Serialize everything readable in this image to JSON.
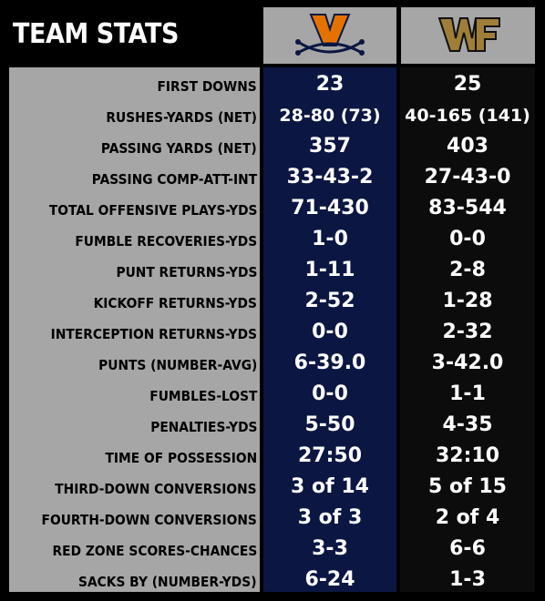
{
  "title": "TEAM STATS",
  "teams": [
    {
      "logo": "virginia-v-sabres-logo",
      "color": "#0b1742"
    },
    {
      "logo": "wake-forest-wf-logo",
      "color": "#0c0c0c"
    }
  ],
  "colors": {
    "label_bg": "#a6a6a6",
    "uva_orange": "#e57200",
    "wf_gold": "#9e7e38"
  },
  "stats": [
    {
      "label": "FIRST DOWNS",
      "uva": "23",
      "wf": "25"
    },
    {
      "label": "RUSHES-YARDS (NET)",
      "uva": "28-80 (73)",
      "wf": "40-165 (141)"
    },
    {
      "label": "PASSING YARDS (NET)",
      "uva": "357",
      "wf": "403"
    },
    {
      "label": "PASSING COMP-ATT-INT",
      "uva": "33-43-2",
      "wf": "27-43-0"
    },
    {
      "label": "TOTAL OFFENSIVE PLAYS-YDS",
      "uva": "71-430",
      "wf": "83-544"
    },
    {
      "label": "FUMBLE RECOVERIES-YDS",
      "uva": "1-0",
      "wf": "0-0"
    },
    {
      "label": "PUNT RETURNS-YDS",
      "uva": "1-11",
      "wf": "2-8"
    },
    {
      "label": "KICKOFF RETURNS-YDS",
      "uva": "2-52",
      "wf": "1-28"
    },
    {
      "label": "INTERCEPTION RETURNS-YDS",
      "uva": "0-0",
      "wf": "2-32"
    },
    {
      "label": "PUNTS (NUMBER-AVG)",
      "uva": "6-39.0",
      "wf": "3-42.0"
    },
    {
      "label": "FUMBLES-LOST",
      "uva": "0-0",
      "wf": "1-1"
    },
    {
      "label": "PENALTIES-YDS",
      "uva": "5-50",
      "wf": "4-35"
    },
    {
      "label": "TIME OF POSSESSION",
      "uva": "27:50",
      "wf": "32:10"
    },
    {
      "label": "THIRD-DOWN CONVERSIONS",
      "uva": "3 of 14",
      "wf": "5 of 15"
    },
    {
      "label": "FOURTH-DOWN CONVERSIONS",
      "uva": "3 of 3",
      "wf": "2 of 4"
    },
    {
      "label": "RED ZONE SCORES-CHANCES",
      "uva": "3-3",
      "wf": "6-6"
    },
    {
      "label": "SACKS BY (NUMBER-YDS)",
      "uva": "6-24",
      "wf": "1-3"
    }
  ]
}
